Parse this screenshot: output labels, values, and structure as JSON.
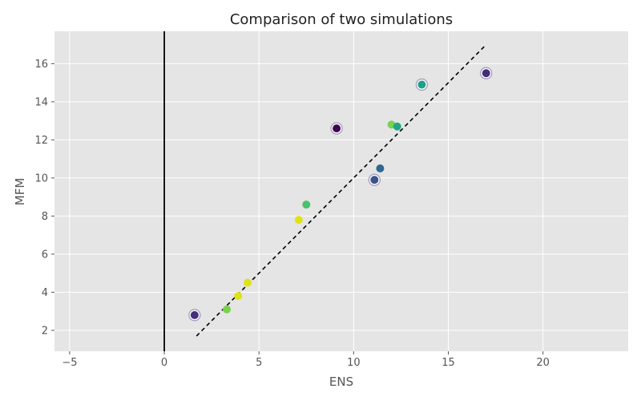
{
  "chart_data": {
    "type": "scatter",
    "title": "Comparison of two simulations",
    "xlabel": "ENS",
    "ylabel": "MFM",
    "xlim": [
      -5.8,
      24.5
    ],
    "ylim": [
      0.9,
      17.7
    ],
    "xticks": [
      -5,
      0,
      5,
      10,
      15,
      20
    ],
    "yticks": [
      2,
      4,
      6,
      8,
      10,
      12,
      14,
      16
    ],
    "grid": true,
    "background_color": "#e5e5e5",
    "grid_color": "#ffffff",
    "vline_x": 0,
    "reference_line": {
      "from": [
        1.7,
        1.7
      ],
      "to": [
        17.0,
        17.0
      ],
      "style": "dashed",
      "color": "#000000"
    },
    "points": [
      {
        "x": 1.6,
        "y": 2.8,
        "color": "#472d7b",
        "highlight": true
      },
      {
        "x": 3.3,
        "y": 3.1,
        "color": "#7ad151",
        "highlight": false
      },
      {
        "x": 3.9,
        "y": 3.8,
        "color": "#dde318",
        "highlight": false
      },
      {
        "x": 4.4,
        "y": 4.5,
        "color": "#dde318",
        "highlight": false
      },
      {
        "x": 7.1,
        "y": 7.8,
        "color": "#dde318",
        "highlight": false
      },
      {
        "x": 7.5,
        "y": 8.6,
        "color": "#4ac16d",
        "highlight": false
      },
      {
        "x": 9.1,
        "y": 12.6,
        "color": "#440154",
        "highlight": true
      },
      {
        "x": 11.1,
        "y": 9.9,
        "color": "#3b528b",
        "highlight": true
      },
      {
        "x": 11.4,
        "y": 10.5,
        "color": "#31688e",
        "highlight": false
      },
      {
        "x": 12.0,
        "y": 12.8,
        "color": "#7ad151",
        "highlight": false
      },
      {
        "x": 12.3,
        "y": 12.7,
        "color": "#21a685",
        "highlight": false
      },
      {
        "x": 13.6,
        "y": 14.9,
        "color": "#1f9e89",
        "highlight": true
      },
      {
        "x": 17.0,
        "y": 15.5,
        "color": "#472d7b",
        "highlight": true
      }
    ]
  }
}
